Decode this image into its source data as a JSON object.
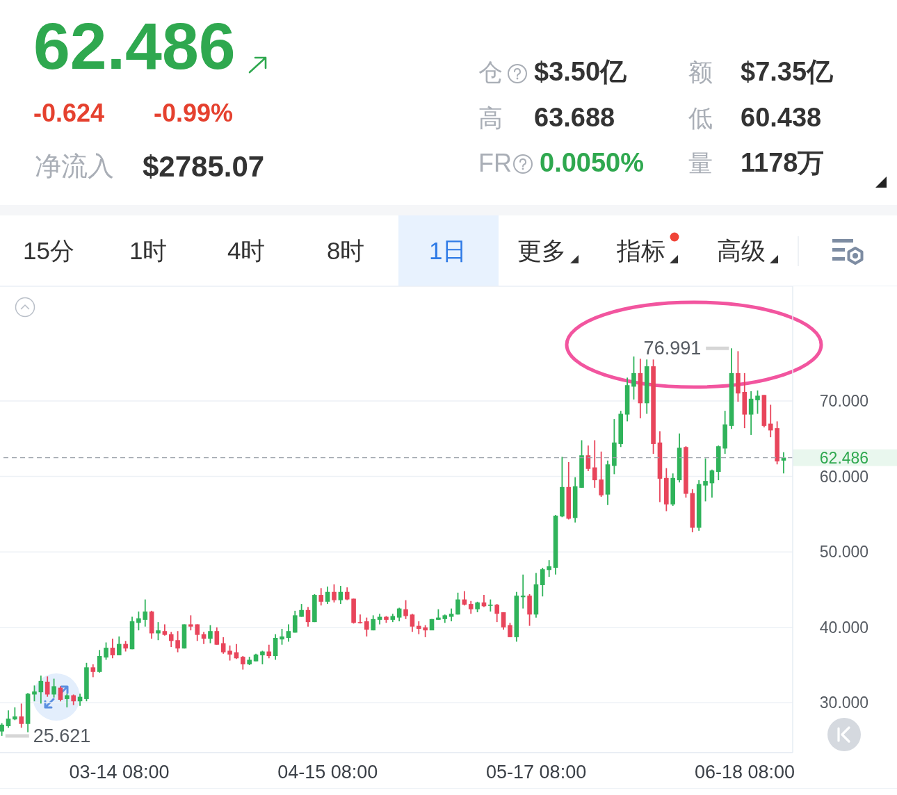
{
  "chart_data": [
    {
      "type": "other",
      "annotations": [
        "62.486",
        "-0.624",
        "-0.99%",
        "净流入",
        "$2785.07",
        "仓",
        "$3.50亿",
        "额",
        "$7.35亿",
        "高",
        "63.688",
        "低",
        "60.438",
        "FR",
        "0.0050%",
        "量",
        "1178万",
        "15分",
        "1时",
        "4时",
        "8时",
        "1日",
        "更多",
        "指标",
        "高级"
      ]
    },
    {
      "type": "candlestick",
      "categories": [
        null,
        null,
        null,
        null,
        null,
        null,
        null,
        null,
        null,
        null,
        null,
        null,
        null,
        null,
        null,
        null,
        null,
        null,
        "03-14 08:00",
        null,
        null,
        null,
        null,
        null,
        null,
        null,
        null,
        null,
        null,
        null,
        null,
        null,
        null,
        null,
        null,
        null,
        null,
        null,
        null,
        null,
        null,
        null,
        null,
        null,
        null,
        null,
        null,
        null,
        null,
        null,
        "04-15 08:00",
        null,
        null,
        null,
        null,
        null,
        null,
        null,
        null,
        null,
        null,
        null,
        null,
        null,
        null,
        null,
        null,
        null,
        null,
        null,
        null,
        null,
        null,
        null,
        null,
        null,
        null,
        null,
        null,
        null,
        null,
        null,
        "05-17 08:00",
        null,
        null,
        null,
        null,
        null,
        null,
        null,
        null,
        null,
        null,
        null,
        null,
        null,
        null,
        null,
        null,
        null,
        null,
        null,
        null,
        null,
        null,
        null,
        null,
        null,
        null,
        null,
        null,
        null,
        null,
        null,
        "06-18 08:00",
        null,
        null,
        null,
        null,
        null,
        null
      ],
      "ohlc": [
        [
          26.2,
          27.3,
          25.621,
          27.1
        ],
        [
          26.9,
          29.0,
          26.7,
          27.9
        ],
        [
          27.8,
          29.4,
          27.7,
          28.2
        ],
        [
          28.2,
          29.9,
          26.7,
          27.2
        ],
        [
          27.2,
          31.3,
          26.1,
          31.2
        ],
        [
          31.1,
          32.3,
          30.2,
          31.5
        ],
        [
          31.4,
          33.6,
          29.9,
          32.9
        ],
        [
          32.8,
          33.5,
          30.8,
          31.1
        ],
        [
          31.1,
          33.2,
          30.7,
          32.2
        ],
        [
          32.0,
          32.2,
          30.2,
          30.4
        ],
        [
          30.5,
          31.2,
          29.4,
          31.0
        ],
        [
          31.0,
          31.1,
          29.7,
          30.2
        ],
        [
          30.2,
          31.2,
          29.6,
          30.8
        ],
        [
          30.5,
          35.3,
          30.2,
          34.7
        ],
        [
          34.7,
          35.1,
          33.4,
          34.1
        ],
        [
          34.1,
          37.0,
          34.0,
          36.2
        ],
        [
          36.0,
          38.0,
          35.7,
          37.3
        ],
        [
          37.3,
          38.5,
          35.9,
          36.3
        ],
        [
          36.3,
          38.8,
          36.3,
          37.8
        ],
        [
          37.8,
          38.2,
          36.8,
          37.2
        ],
        [
          37.1,
          41.4,
          37.1,
          40.8
        ],
        [
          40.6,
          42.1,
          39.6,
          41.2
        ],
        [
          41.0,
          43.7,
          40.1,
          42.1
        ],
        [
          42.1,
          42.2,
          38.5,
          39.2
        ],
        [
          39.2,
          40.7,
          38.3,
          39.6
        ],
        [
          39.5,
          40.4,
          38.9,
          39.0
        ],
        [
          39.1,
          39.4,
          37.4,
          38.2
        ],
        [
          38.3,
          39.5,
          36.7,
          37.2
        ],
        [
          37.2,
          40.4,
          37.2,
          40.4
        ],
        [
          40.4,
          41.6,
          39.6,
          40.1
        ],
        [
          40.4,
          40.4,
          38.2,
          39.0
        ],
        [
          39.1,
          39.4,
          37.8,
          38.5
        ],
        [
          38.5,
          40.3,
          37.9,
          39.5
        ],
        [
          39.5,
          40.0,
          37.7,
          37.7
        ],
        [
          37.9,
          38.7,
          36.5,
          36.7
        ],
        [
          36.9,
          37.6,
          35.6,
          36.4
        ],
        [
          36.7,
          37.8,
          35.8,
          35.9
        ],
        [
          36.1,
          36.2,
          34.4,
          35.1
        ],
        [
          35.1,
          36.1,
          35.0,
          35.7
        ],
        [
          35.5,
          36.5,
          35.5,
          36.4
        ],
        [
          36.3,
          36.9,
          35.1,
          36.8
        ],
        [
          36.8,
          37.7,
          35.9,
          36.2
        ],
        [
          36.2,
          39.1,
          35.7,
          38.6
        ],
        [
          38.4,
          39.8,
          37.7,
          38.8
        ],
        [
          38.6,
          40.4,
          38.1,
          39.5
        ],
        [
          39.3,
          42.2,
          39.3,
          41.6
        ],
        [
          41.4,
          43.1,
          41.4,
          42.3
        ],
        [
          42.3,
          42.7,
          40.1,
          40.7
        ],
        [
          40.7,
          44.4,
          40.7,
          44.3
        ],
        [
          44.3,
          45.2,
          42.9,
          43.4
        ],
        [
          43.4,
          45.4,
          43.1,
          44.7
        ],
        [
          44.7,
          45.7,
          43.3,
          43.6
        ],
        [
          43.6,
          45.5,
          43.1,
          44.7
        ],
        [
          44.7,
          45.3,
          43.6,
          43.7
        ],
        [
          43.8,
          43.8,
          40.5,
          40.6
        ],
        [
          40.7,
          41.7,
          40.5,
          40.6
        ],
        [
          40.8,
          41.3,
          38.8,
          39.7
        ],
        [
          39.6,
          41.6,
          39.6,
          41.1
        ],
        [
          41.0,
          41.8,
          40.4,
          41.4
        ],
        [
          41.4,
          41.5,
          40.6,
          41.0
        ],
        [
          41.0,
          41.8,
          40.7,
          41.5
        ],
        [
          41.3,
          42.6,
          40.8,
          42.5
        ],
        [
          42.4,
          43.6,
          41.1,
          41.5
        ],
        [
          41.7,
          41.8,
          39.4,
          40.1
        ],
        [
          40.2,
          40.8,
          39.1,
          39.8
        ],
        [
          40.0,
          40.3,
          38.7,
          39.6
        ],
        [
          39.6,
          41.1,
          39.6,
          41.1
        ],
        [
          41.0,
          42.4,
          41.0,
          41.3
        ],
        [
          41.1,
          41.7,
          40.6,
          41.6
        ],
        [
          41.4,
          42.5,
          40.8,
          41.8
        ],
        [
          41.7,
          44.6,
          41.7,
          43.7
        ],
        [
          43.7,
          44.8,
          42.9,
          43.0
        ],
        [
          43.1,
          43.5,
          41.8,
          42.4
        ],
        [
          42.4,
          43.4,
          42.0,
          43.3
        ],
        [
          43.3,
          44.3,
          42.7,
          42.8
        ],
        [
          42.9,
          43.7,
          42.1,
          43.0
        ],
        [
          43.0,
          43.1,
          40.7,
          41.8
        ],
        [
          42.0,
          42.0,
          39.7,
          40.0
        ],
        [
          40.3,
          40.6,
          38.7,
          38.7
        ],
        [
          38.7,
          44.7,
          38.1,
          44.2
        ],
        [
          44.0,
          47.0,
          42.5,
          44.2
        ],
        [
          44.2,
          44.4,
          40.2,
          41.7
        ],
        [
          41.7,
          47.2,
          41.3,
          45.7
        ],
        [
          45.6,
          47.9,
          44.1,
          47.7
        ],
        [
          47.6,
          48.9,
          46.7,
          48.1
        ],
        [
          47.9,
          54.9,
          47.0,
          54.8
        ],
        [
          54.7,
          62.6,
          54.6,
          58.6
        ],
        [
          58.6,
          61.9,
          54.3,
          54.4
        ],
        [
          54.5,
          59.9,
          53.9,
          58.7
        ],
        [
          58.5,
          64.8,
          58.5,
          62.8
        ],
        [
          62.8,
          64.1,
          60.7,
          61.0
        ],
        [
          61.2,
          64.8,
          58.5,
          59.5
        ],
        [
          59.6,
          63.3,
          57.3,
          57.5
        ],
        [
          57.6,
          62.1,
          56.2,
          61.6
        ],
        [
          61.4,
          67.6,
          60.3,
          64.5
        ],
        [
          64.3,
          68.7,
          63.9,
          68.3
        ],
        [
          68.2,
          73.1,
          67.3,
          72.1
        ],
        [
          71.9,
          75.9,
          70.2,
          73.7
        ],
        [
          73.7,
          75.6,
          67.7,
          69.7
        ],
        [
          69.7,
          75.5,
          68.3,
          74.6
        ],
        [
          74.6,
          75.5,
          63.0,
          64.3
        ],
        [
          64.5,
          66.0,
          56.6,
          59.7
        ],
        [
          59.8,
          61.1,
          55.4,
          56.3
        ],
        [
          56.3,
          60.4,
          56.1,
          59.8
        ],
        [
          59.5,
          65.7,
          59.2,
          63.8
        ],
        [
          63.9,
          64.0,
          57.2,
          57.7
        ],
        [
          57.8,
          58.3,
          52.6,
          53.2
        ],
        [
          53.2,
          59.5,
          52.8,
          59.0
        ],
        [
          58.8,
          62.4,
          56.7,
          59.4
        ],
        [
          59.1,
          60.9,
          57.2,
          60.8
        ],
        [
          60.6,
          64.1,
          59.5,
          64.0
        ],
        [
          63.7,
          68.7,
          63.0,
          66.9
        ],
        [
          66.7,
          76.991,
          66.3,
          73.7
        ],
        [
          73.7,
          76.6,
          69.9,
          71.0
        ],
        [
          71.2,
          73.7,
          66.4,
          68.2
        ],
        [
          68.2,
          71.3,
          65.5,
          70.3
        ],
        [
          70.1,
          71.4,
          68.3,
          70.7
        ],
        [
          70.8,
          70.8,
          66.5,
          66.7
        ],
        [
          67.0,
          69.5,
          65.2,
          66.1
        ],
        [
          66.4,
          67.3,
          61.6,
          62.0
        ],
        [
          62.1,
          63.2,
          60.4,
          62.5
        ]
      ],
      "ylim": [
        23.4,
        85.2
      ],
      "yticks": [
        {
          "value": 30,
          "label": "30.000"
        },
        {
          "value": 40,
          "label": "40.000"
        },
        {
          "value": 50,
          "label": "50.000"
        },
        {
          "value": 60,
          "label": "60.000"
        },
        {
          "value": 70,
          "label": "70.000"
        }
      ],
      "grid": "y",
      "ref_lines": [
        {
          "axis": "y",
          "value": 62.486,
          "label": "62.486",
          "color": "#9ca2aa",
          "line_style": "dashed"
        }
      ],
      "annotations": [
        "76.991",
        "25.621"
      ]
    }
  ]
}
